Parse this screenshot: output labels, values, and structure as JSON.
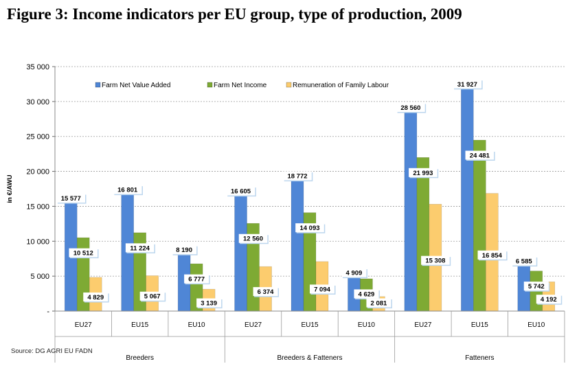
{
  "figure_title": "Figure 3: Income indicators per EU group, type of production, 2009",
  "source": "Source: DG AGRI EU FADN",
  "chart_data": {
    "type": "bar",
    "title": "",
    "xlabel": "",
    "ylabel": "in €/AWU",
    "ylim": [
      0,
      35000
    ],
    "yticks": [
      0,
      5000,
      10000,
      15000,
      20000,
      25000,
      30000,
      35000
    ],
    "ytick_labels": [
      "-",
      "5 000",
      "10 000",
      "15 000",
      "20 000",
      "25 000",
      "30 000",
      "35 000"
    ],
    "grid": true,
    "legend_position": "top-left",
    "categories": [
      "EU27",
      "EU15",
      "EU10",
      "EU27",
      "EU15",
      "EU10",
      "EU27",
      "EU15",
      "EU10"
    ],
    "groups": [
      {
        "label": "Breeders",
        "categories": [
          "EU27",
          "EU15",
          "EU10"
        ]
      },
      {
        "label": "Breeders & Fatteners",
        "categories": [
          "EU27",
          "EU15",
          "EU10"
        ]
      },
      {
        "label": "Fatteners",
        "categories": [
          "EU27",
          "EU15",
          "EU10"
        ]
      }
    ],
    "series": [
      {
        "name": "Farm Net Value Added",
        "color": "#4f86d6",
        "values": [
          15577,
          16801,
          8190,
          16605,
          18772,
          4909,
          28560,
          31927,
          6585
        ],
        "labels": [
          "15 577",
          "16 801",
          "8 190",
          "16 605",
          "18 772",
          "4 909",
          "28 560",
          "31 927",
          "6 585"
        ]
      },
      {
        "name": "Farm Net Income",
        "color": "#7eaa34",
        "values": [
          10512,
          11224,
          6777,
          12560,
          14093,
          4629,
          21993,
          24481,
          5742
        ],
        "labels": [
          "10 512",
          "11 224",
          "6 777",
          "12 560",
          "14 093",
          "4 629",
          "21 993",
          "24 481",
          "5 742"
        ]
      },
      {
        "name": "Remuneration of Family Labour",
        "color": "#fccc6e",
        "values": [
          4829,
          5067,
          3139,
          6374,
          7094,
          2081,
          15308,
          16854,
          4192
        ],
        "labels": [
          "4 829",
          "5 067",
          "3 139",
          "6 374",
          "7 094",
          "2 081",
          "15 308",
          "16 854",
          "4 192"
        ]
      }
    ]
  }
}
